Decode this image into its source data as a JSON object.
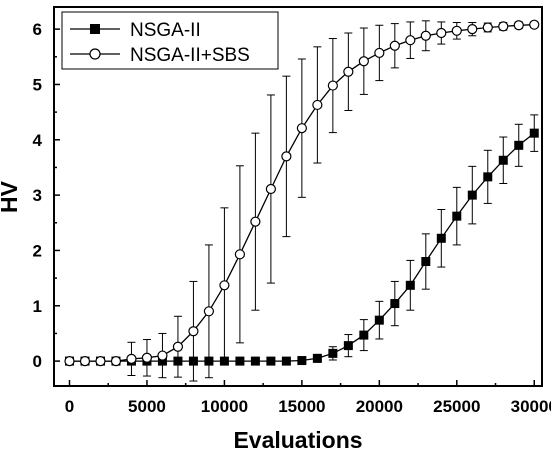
{
  "chart_data": {
    "type": "line",
    "xlabel": "Evaluations",
    "ylabel": "HV",
    "xlim": [
      -1000,
      30500
    ],
    "ylim": [
      -0.45,
      6.4
    ],
    "xticks": [
      0,
      5000,
      10000,
      15000,
      20000,
      25000,
      30000
    ],
    "yticks": [
      0,
      1,
      2,
      3,
      4,
      5,
      6
    ],
    "grid": false,
    "legend_position": "top-left",
    "series": [
      {
        "name": "NSGA-II",
        "marker": "filled-square",
        "x": [
          0,
          1000,
          2000,
          3000,
          4000,
          5000,
          6000,
          7000,
          8000,
          9000,
          10000,
          11000,
          12000,
          13000,
          14000,
          15000,
          16000,
          17000,
          18000,
          19000,
          20000,
          21000,
          22000,
          23000,
          24000,
          25000,
          26000,
          27000,
          28000,
          29000,
          30000
        ],
        "y": [
          0,
          0,
          0,
          0,
          0,
          0,
          0,
          0,
          0,
          0,
          0,
          0,
          0,
          0,
          0,
          0.01,
          0.05,
          0.14,
          0.28,
          0.47,
          0.74,
          1.04,
          1.37,
          1.8,
          2.22,
          2.62,
          3.0,
          3.33,
          3.63,
          3.9,
          4.12
        ],
        "err": [
          0,
          0,
          0,
          0,
          0,
          0,
          0,
          0,
          0,
          0,
          0,
          0,
          0,
          0,
          0,
          0.02,
          0.07,
          0.12,
          0.2,
          0.28,
          0.34,
          0.4,
          0.45,
          0.5,
          0.52,
          0.52,
          0.52,
          0.48,
          0.42,
          0.38,
          0.33
        ]
      },
      {
        "name": "NSGA-II+SBS",
        "marker": "open-circle",
        "x": [
          0,
          1000,
          2000,
          3000,
          4000,
          5000,
          6000,
          7000,
          8000,
          9000,
          10000,
          11000,
          12000,
          13000,
          14000,
          15000,
          16000,
          17000,
          18000,
          19000,
          20000,
          21000,
          22000,
          23000,
          24000,
          25000,
          26000,
          27000,
          28000,
          29000,
          30000
        ],
        "y": [
          0,
          0,
          0,
          0,
          0.04,
          0.06,
          0.1,
          0.26,
          0.54,
          0.9,
          1.37,
          1.93,
          2.52,
          3.11,
          3.7,
          4.21,
          4.63,
          4.98,
          5.23,
          5.42,
          5.57,
          5.7,
          5.8,
          5.88,
          5.93,
          5.97,
          6.0,
          6.03,
          6.05,
          6.07,
          6.08
        ],
        "err": [
          0,
          0,
          0,
          0,
          0.3,
          0.33,
          0.4,
          0.55,
          0.9,
          1.2,
          1.4,
          1.6,
          1.6,
          1.7,
          1.45,
          1.25,
          1.05,
          0.85,
          0.7,
          0.6,
          0.5,
          0.4,
          0.33,
          0.27,
          0.2,
          0.15,
          0.12,
          0.08,
          0.07,
          0.06,
          0.05
        ]
      }
    ]
  }
}
